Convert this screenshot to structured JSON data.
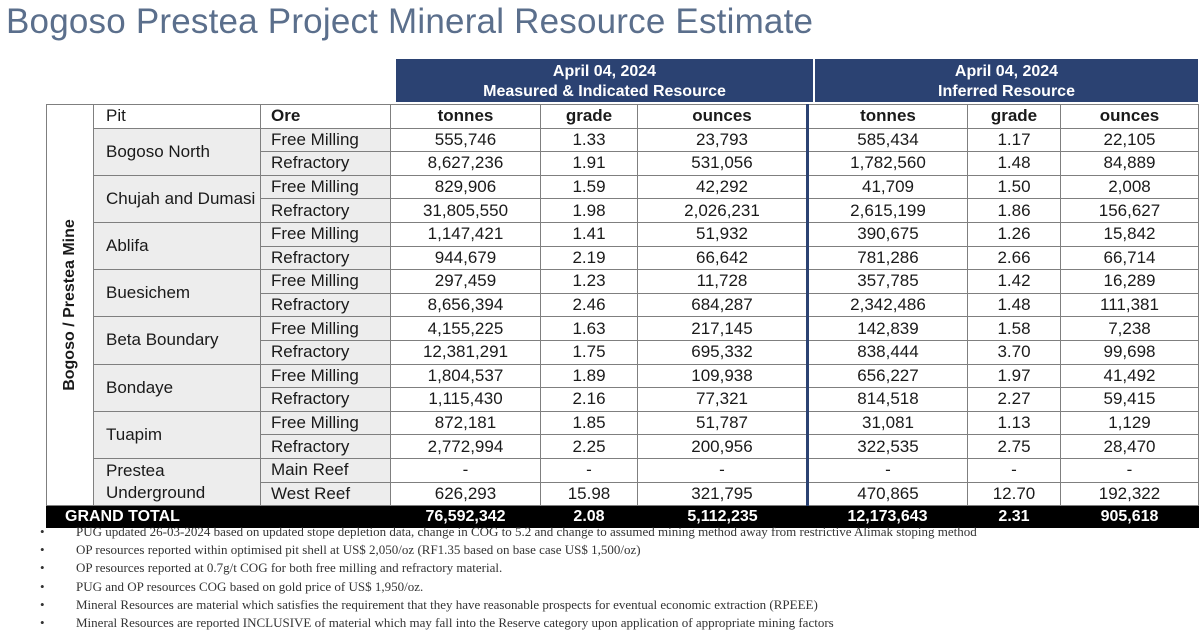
{
  "title": "Bogoso Prestea Project Mineral Resource Estimate",
  "headers": {
    "mi_date": "April 04, 2024",
    "mi_label": "Measured & Indicated Resource",
    "inf_date": "April 04, 2024",
    "inf_label": "Inferred Resource"
  },
  "columns": {
    "pit": "Pit",
    "ore": "Ore",
    "mi_tonnes": "tonnes",
    "mi_grade": "grade",
    "mi_ounces": "ounces",
    "inf_tonnes": "tonnes",
    "inf_grade": "grade",
    "inf_ounces": "ounces"
  },
  "mine_label": "Bogoso / Prestea Mine",
  "pits": [
    {
      "name": "Bogoso North",
      "rows": [
        {
          "ore": "Free Milling",
          "mt": "555,746",
          "mg": "1.33",
          "mo": "23,793",
          "it": "585,434",
          "ig": "1.17",
          "io": "22,105"
        },
        {
          "ore": "Refractory",
          "mt": "8,627,236",
          "mg": "1.91",
          "mo": "531,056",
          "it": "1,782,560",
          "ig": "1.48",
          "io": "84,889"
        }
      ]
    },
    {
      "name": "Chujah and Dumasi",
      "rows": [
        {
          "ore": "Free Milling",
          "mt": "829,906",
          "mg": "1.59",
          "mo": "42,292",
          "it": "41,709",
          "ig": "1.50",
          "io": "2,008"
        },
        {
          "ore": "Refractory",
          "mt": "31,805,550",
          "mg": "1.98",
          "mo": "2,026,231",
          "it": "2,615,199",
          "ig": "1.86",
          "io": "156,627"
        }
      ]
    },
    {
      "name": "Ablifa",
      "rows": [
        {
          "ore": "Free Milling",
          "mt": "1,147,421",
          "mg": "1.41",
          "mo": "51,932",
          "it": "390,675",
          "ig": "1.26",
          "io": "15,842"
        },
        {
          "ore": "Refractory",
          "mt": "944,679",
          "mg": "2.19",
          "mo": "66,642",
          "it": "781,286",
          "ig": "2.66",
          "io": "66,714"
        }
      ]
    },
    {
      "name": "Buesichem",
      "rows": [
        {
          "ore": "Free Milling",
          "mt": "297,459",
          "mg": "1.23",
          "mo": "11,728",
          "it": "357,785",
          "ig": "1.42",
          "io": "16,289"
        },
        {
          "ore": "Refractory",
          "mt": "8,656,394",
          "mg": "2.46",
          "mo": "684,287",
          "it": "2,342,486",
          "ig": "1.48",
          "io": "111,381"
        }
      ]
    },
    {
      "name": "Beta Boundary",
      "rows": [
        {
          "ore": "Free Milling",
          "mt": "4,155,225",
          "mg": "1.63",
          "mo": "217,145",
          "it": "142,839",
          "ig": "1.58",
          "io": "7,238"
        },
        {
          "ore": "Refractory",
          "mt": "12,381,291",
          "mg": "1.75",
          "mo": "695,332",
          "it": "838,444",
          "ig": "3.70",
          "io": "99,698"
        }
      ]
    },
    {
      "name": "Bondaye",
      "rows": [
        {
          "ore": "Free Milling",
          "mt": "1,804,537",
          "mg": "1.89",
          "mo": "109,938",
          "it": "656,227",
          "ig": "1.97",
          "io": "41,492"
        },
        {
          "ore": "Refractory",
          "mt": "1,115,430",
          "mg": "2.16",
          "mo": "77,321",
          "it": "814,518",
          "ig": "2.27",
          "io": "59,415"
        }
      ]
    },
    {
      "name": "Tuapim",
      "rows": [
        {
          "ore": "Free Milling",
          "mt": "872,181",
          "mg": "1.85",
          "mo": "51,787",
          "it": "31,081",
          "ig": "1.13",
          "io": "1,129"
        },
        {
          "ore": "Refractory",
          "mt": "2,772,994",
          "mg": "2.25",
          "mo": "200,956",
          "it": "322,535",
          "ig": "2.75",
          "io": "28,470"
        }
      ]
    },
    {
      "name": "Prestea Underground",
      "rows": [
        {
          "ore": "Main Reef",
          "mt": "-",
          "mg": "-",
          "mo": "-",
          "it": "-",
          "ig": "-",
          "io": "-"
        },
        {
          "ore": "West Reef",
          "mt": "626,293",
          "mg": "15.98",
          "mo": "321,795",
          "it": "470,865",
          "ig": "12.70",
          "io": "192,322"
        }
      ]
    }
  ],
  "grand_total": {
    "label": "GRAND TOTAL",
    "mt": "76,592,342",
    "mg": "2.08",
    "mo": "5,112,235",
    "it": "12,173,643",
    "ig": "2.31",
    "io": "905,618"
  },
  "notes": {
    "bullet": "•",
    "items": [
      "PUG updated 26-03-2024 based on updated stope depletion data, change in COG to 5.2 and change to assumed mining method away from restrictive Alimak stoping method",
      "OP resources reported within optimised pit shell at US$ 2,050/oz (RF1.35 based on base case US$ 1,500/oz)",
      "OP resources reported at 0.7g/t COG for both free milling and refractory material.",
      "PUG and OP resources COG based on gold price of US$ 1,950/oz.",
      "Mineral Resources are material which satisfies the requirement that they have reasonable prospects for eventual economic extraction (RPEEE)",
      "Mineral Resources are reported INCLUSIVE of material which may fall into the Reserve category upon application of appropriate mining factors"
    ]
  }
}
